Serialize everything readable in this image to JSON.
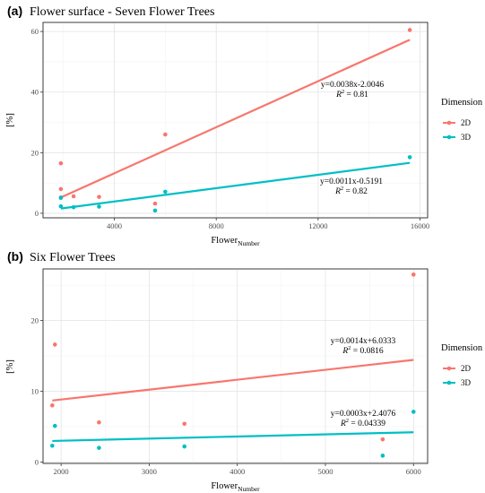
{
  "chart_data": [
    {
      "type": "scatter",
      "panel_tag": "(a)",
      "title": "Flower surface - Seven Flower Trees",
      "xlabel": "Flower",
      "xlabel_subscript": "Number",
      "ylabel": "[%]",
      "xlim": [
        1200,
        16300
      ],
      "ylim": [
        -1.5,
        63
      ],
      "xticks": [
        4000,
        8000,
        12000,
        16000
      ],
      "xtick_labels": [
        "4000",
        "8000",
        "12000",
        "16000"
      ],
      "yticks": [
        0,
        20,
        40,
        60
      ],
      "ytick_labels": [
        "0",
        "20",
        "40",
        "60"
      ],
      "grid": true,
      "legend": {
        "title": "Dimension",
        "position": "right"
      },
      "series": [
        {
          "name": "2D",
          "color": "#F8766D",
          "points": [
            [
              1900,
              16.5
            ],
            [
              1900,
              8.0
            ],
            [
              1900,
              5.2
            ],
            [
              2400,
              5.6
            ],
            [
              3400,
              5.4
            ],
            [
              5600,
              3.2
            ],
            [
              6000,
              26.0
            ],
            [
              15600,
              60.5
            ]
          ],
          "fit": {
            "slope": 0.0038,
            "intercept": -2.0046,
            "x_range": [
              1900,
              15600
            ],
            "equation": "y=0.0038x-2.0046",
            "r2_label": "R",
            "r2_value": " = 0.81"
          }
        },
        {
          "name": "3D",
          "color": "#00BFC4",
          "points": [
            [
              1900,
              5.1
            ],
            [
              1900,
              2.3
            ],
            [
              2400,
              2.0
            ],
            [
              3400,
              2.2
            ],
            [
              5600,
              0.9
            ],
            [
              6000,
              7.1
            ],
            [
              15600,
              18.5
            ]
          ],
          "fit": {
            "slope": 0.0011,
            "intercept": -0.5191,
            "x_range": [
              1900,
              15600
            ],
            "equation": "y=0.0011x-0.5191",
            "r2_label": "R",
            "r2_value": " = 0.82"
          }
        }
      ]
    },
    {
      "type": "scatter",
      "panel_tag": "(b)",
      "title": "Six Flower Trees",
      "xlabel": "Flower",
      "xlabel_subscript": "Number",
      "ylabel": "[%]",
      "xlim": [
        1795,
        6160
      ],
      "ylim": [
        -0.2,
        27.3
      ],
      "xticks": [
        2000,
        3000,
        4000,
        5000,
        6000
      ],
      "xtick_labels": [
        "2000",
        "3000",
        "4000",
        "5000",
        "6000"
      ],
      "yticks": [
        0,
        10,
        20
      ],
      "ytick_labels": [
        "0",
        "10",
        "20"
      ],
      "grid": true,
      "legend": {
        "title": "Dimension",
        "position": "right"
      },
      "series": [
        {
          "name": "2D",
          "color": "#F8766D",
          "points": [
            [
              1900,
              8.0
            ],
            [
              1930,
              16.6
            ],
            [
              2430,
              5.6
            ],
            [
              3400,
              5.4
            ],
            [
              5650,
              3.2
            ],
            [
              6000,
              26.5
            ]
          ],
          "fit": {
            "slope": 0.0014,
            "intercept": 6.0333,
            "x_range": [
              1900,
              6000
            ],
            "equation": "y=0.0014x+6.0333",
            "r2_label": "R",
            "r2_value": " = 0.0816"
          }
        },
        {
          "name": "3D",
          "color": "#00BFC4",
          "points": [
            [
              1900,
              2.3
            ],
            [
              1930,
              5.1
            ],
            [
              2430,
              2.0
            ],
            [
              3400,
              2.2
            ],
            [
              5650,
              0.9
            ],
            [
              6000,
              7.1
            ]
          ],
          "fit": {
            "slope": 0.0003,
            "intercept": 2.4076,
            "x_range": [
              1900,
              6000
            ],
            "equation": "y=0.0003x+2.4076",
            "r2_label": "R",
            "r2_value": " = 0.04339"
          }
        }
      ]
    }
  ]
}
